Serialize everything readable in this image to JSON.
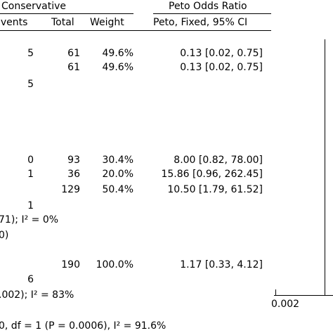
{
  "chart_data": {
    "type": "table",
    "title": "",
    "header": {
      "group_conservative": "Conservative",
      "group_peto": "Peto Odds Ratio",
      "col_events": "Events",
      "col_total": "Total",
      "col_weight": "Weight",
      "col_method": "Peto, Fixed, 95% CI"
    },
    "rows": [
      {
        "events": "5",
        "total": "61",
        "weight": "49.6%",
        "ci": "0.13 [0.02, 0.75]",
        "or": 0.13,
        "lo": 0.02,
        "hi": 0.75
      },
      {
        "events": "",
        "total": "61",
        "weight": "49.6%",
        "ci": "0.13 [0.02, 0.75]",
        "or": 0.13,
        "lo": 0.02,
        "hi": 0.75
      },
      {
        "events": "5",
        "total": "",
        "weight": "",
        "ci": ""
      },
      {
        "events": "0",
        "total": "93",
        "weight": "30.4%",
        "ci": "8.00 [0.82, 78.00]",
        "or": 8.0,
        "lo": 0.82,
        "hi": 78.0
      },
      {
        "events": "1",
        "total": "36",
        "weight": "20.0%",
        "ci": "15.86 [0.96, 262.45]",
        "or": 15.86,
        "lo": 0.96,
        "hi": 262.45
      },
      {
        "events": "",
        "total": "129",
        "weight": "50.4%",
        "ci": "10.50 [1.79, 61.52]",
        "or": 10.5,
        "lo": 1.79,
        "hi": 61.52
      },
      {
        "events": "1",
        "total": "",
        "weight": "",
        "ci": ""
      },
      {
        "events": "",
        "total": "190",
        "weight": "100.0%",
        "ci": "1.17 [0.33, 4.12]",
        "or": 1.17,
        "lo": 0.33,
        "hi": 4.12
      },
      {
        "events": "6",
        "total": "",
        "weight": "",
        "ci": ""
      }
    ],
    "stats": [
      "71); I² = 0%",
      "0)",
      ".002); I² = 83%",
      "0, df = 1 (P = 0.0006), I² = 91.6%"
    ],
    "axis": {
      "scale": "log",
      "tick_labels": [
        "0.002"
      ]
    }
  }
}
